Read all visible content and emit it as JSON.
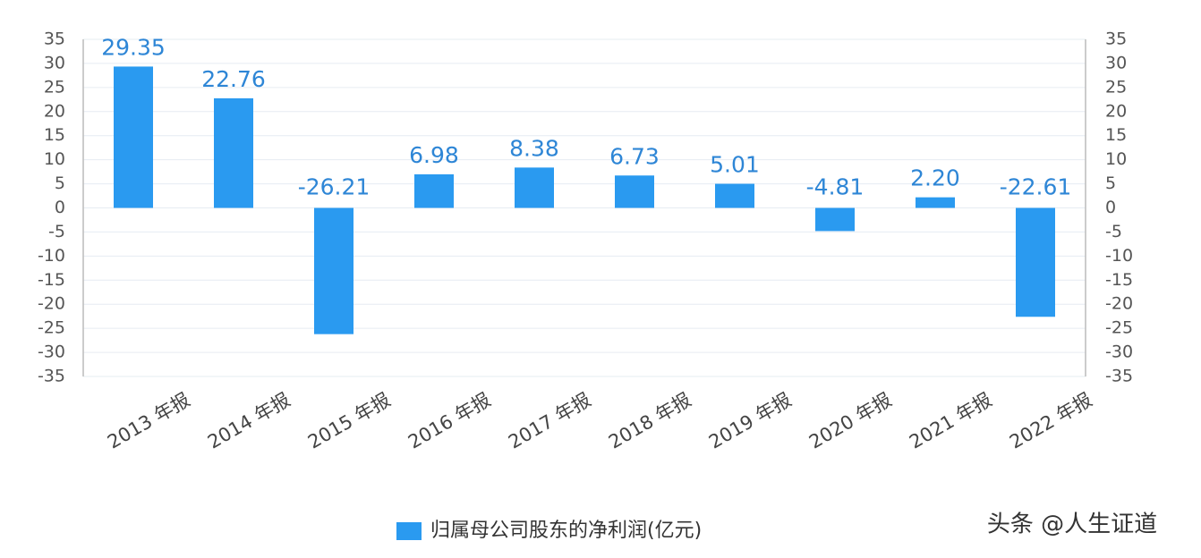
{
  "chart_data": {
    "type": "bar",
    "categories": [
      "2013 年报",
      "2014 年报",
      "2015 年报",
      "2016 年报",
      "2017 年报",
      "2018 年报",
      "2019 年报",
      "2020 年报",
      "2021 年报",
      "2022 年报"
    ],
    "series": [
      {
        "name": "归属母公司股东的净利润(亿元)",
        "color": "#2a9af0",
        "values": [
          29.35,
          22.76,
          -26.21,
          6.98,
          8.38,
          6.73,
          5.01,
          -4.81,
          2.2,
          -22.61
        ],
        "value_labels": [
          "29.35",
          "22.76",
          "-26.21",
          "6.98",
          "8.38",
          "6.73",
          "5.01",
          "-4.81",
          "2.20",
          "-22.61"
        ]
      }
    ],
    "ylim": [
      -35,
      35
    ],
    "yticks": [
      -35,
      -30,
      -25,
      -20,
      -15,
      -10,
      -5,
      0,
      5,
      10,
      15,
      20,
      25,
      30,
      35
    ],
    "y2lim": [
      -35,
      35
    ],
    "y2ticks": [
      -35,
      -30,
      -25,
      -20,
      -15,
      -10,
      -5,
      0,
      5,
      10,
      15,
      20,
      25,
      30,
      35
    ],
    "grid": true,
    "legend": "bottom",
    "watermark": "头条 @人生证道"
  }
}
